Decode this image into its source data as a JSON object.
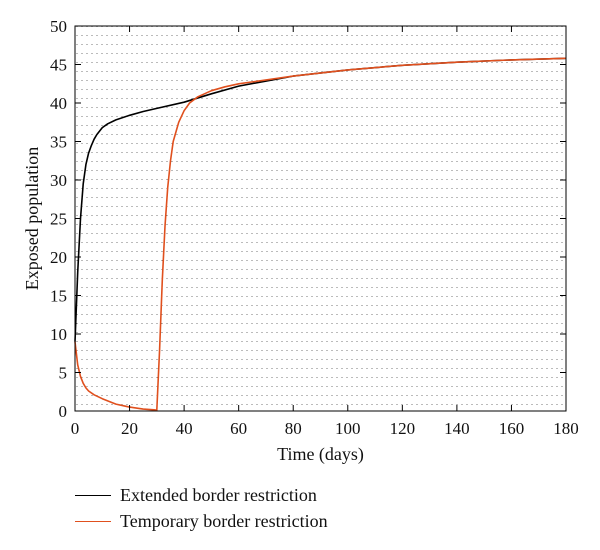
{
  "chart_data": {
    "type": "line",
    "title": "",
    "xlabel": "Time (days)",
    "ylabel": "Exposed population",
    "xlim": [
      0,
      180
    ],
    "ylim": [
      0,
      50
    ],
    "xticks": [
      0,
      20,
      40,
      60,
      80,
      100,
      120,
      140,
      160,
      180
    ],
    "yticks": [
      0,
      5,
      10,
      15,
      20,
      25,
      30,
      35,
      40,
      45,
      50
    ],
    "grid": "dotted",
    "legend_position": "below",
    "series": [
      {
        "name": "Extended border restriction",
        "color": "#000000",
        "x": [
          0,
          1,
          2,
          3,
          4,
          5,
          6,
          7,
          8,
          10,
          12,
          15,
          20,
          25,
          30,
          40,
          50,
          60,
          80,
          100,
          120,
          140,
          160,
          180
        ],
        "y": [
          9,
          18,
          25,
          29.5,
          32,
          33.5,
          34.5,
          35.3,
          35.9,
          36.8,
          37.3,
          37.8,
          38.4,
          38.9,
          39.3,
          40.1,
          41.2,
          42.2,
          43.5,
          44.3,
          44.9,
          45.3,
          45.6,
          45.8
        ]
      },
      {
        "name": "Temporary border restriction",
        "color": "#e0501e",
        "x": [
          0,
          1,
          2,
          3,
          4,
          5,
          7,
          10,
          15,
          20,
          25,
          29,
          30,
          31,
          32,
          33,
          34,
          35,
          36,
          38,
          40,
          42,
          45,
          50,
          55,
          60,
          80,
          100,
          120,
          140,
          160,
          180
        ],
        "y": [
          9,
          6,
          4.5,
          3.6,
          3.0,
          2.6,
          2.1,
          1.6,
          0.9,
          0.5,
          0.25,
          0.15,
          0.1,
          8,
          17,
          24,
          29,
          32.5,
          35,
          37.5,
          39,
          40,
          40.8,
          41.6,
          42.1,
          42.5,
          43.5,
          44.3,
          44.9,
          45.3,
          45.6,
          45.8
        ]
      }
    ]
  }
}
